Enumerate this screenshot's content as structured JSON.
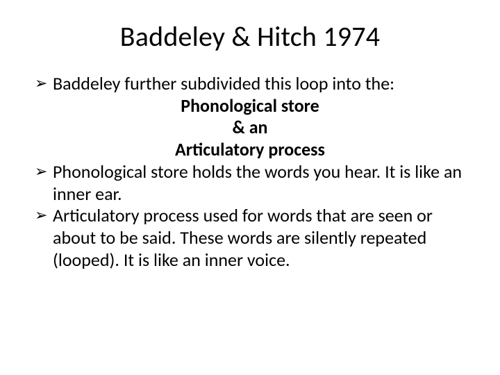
{
  "slide": {
    "title": "Baddeley & Hitch 1974",
    "bullet1": "Baddeley further subdivided this loop into the:",
    "centerLine1": "Phonological store",
    "centerLine2": "& an",
    "centerLine3": "Articulatory process",
    "bullet2": "Phonological store holds the words you hear. It is like an inner ear.",
    "bullet3": "Articulatory process used for words that are seen or about to be said. These words are silently repeated (looped). It is like an inner voice."
  },
  "style": {
    "background_color": "#ffffff",
    "text_color": "#000000",
    "title_fontsize": 40,
    "body_fontsize": 26,
    "font_family": "Calibri",
    "bullet_glyph": "➢",
    "slide_width": 720,
    "slide_height": 540
  }
}
